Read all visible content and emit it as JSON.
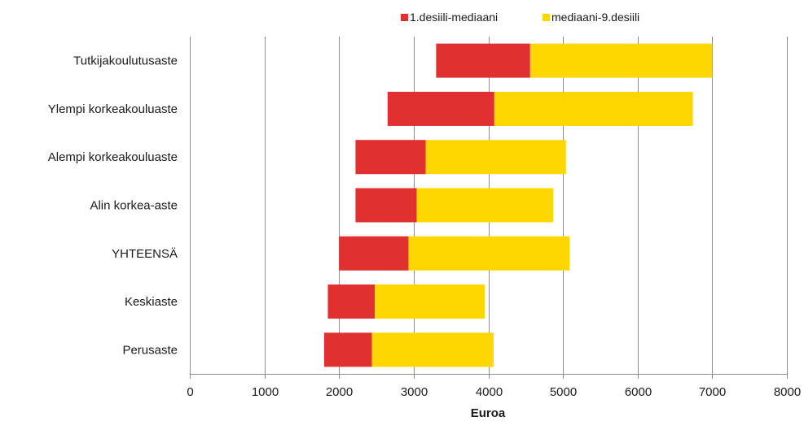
{
  "chart_data": {
    "type": "bar",
    "orientation": "horizontal",
    "stacked": true,
    "categories": [
      "Tutkijakoulutusaste",
      "Ylempi korkeakouluaste",
      "Alempi korkeakouluaste",
      "Alin korkea-aste",
      "YHTEENSÄ",
      "Keskiaste",
      "Perusaste"
    ],
    "series": [
      {
        "name": "1.desiili-mediaani",
        "color": "#e03030",
        "start": [
          3300,
          2650,
          2220,
          2220,
          2000,
          1850,
          1800
        ],
        "end": [
          4560,
          4080,
          3160,
          3040,
          2930,
          2480,
          2440
        ]
      },
      {
        "name": "mediaani-9.desiili",
        "color": "#ffd700",
        "start": [
          4560,
          4080,
          3160,
          3040,
          2930,
          2480,
          2440
        ],
        "end": [
          7000,
          6740,
          5040,
          4870,
          5090,
          3950,
          4070
        ]
      }
    ],
    "xlabel": "Euroa",
    "xlim": [
      0,
      8000
    ],
    "xticks": [
      "0",
      "1000",
      "2000",
      "3000",
      "4000",
      "5000",
      "6000",
      "7000",
      "8000"
    ],
    "grid": "vertical",
    "legend_position": "top"
  }
}
